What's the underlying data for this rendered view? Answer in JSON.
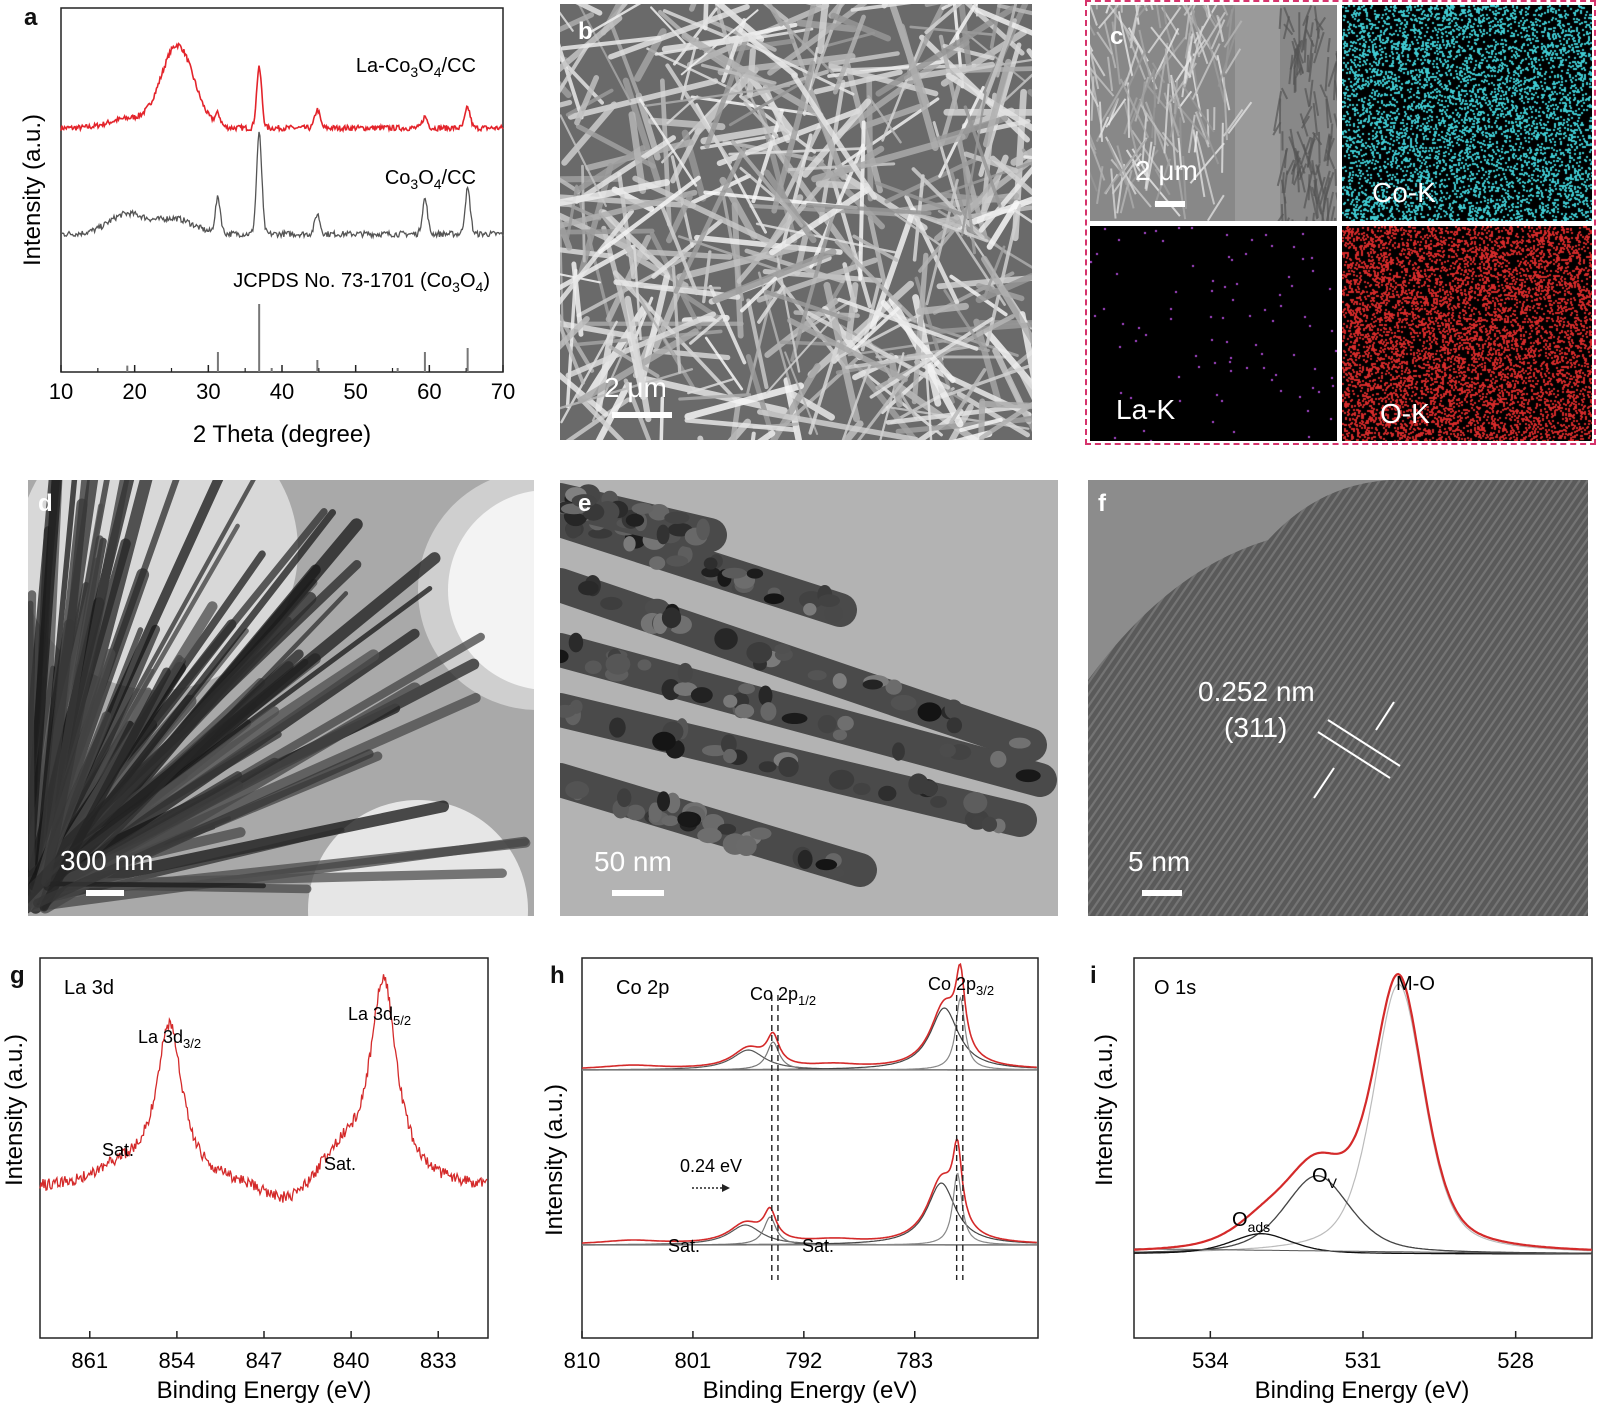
{
  "panels": {
    "a": {
      "letter": "a"
    },
    "b": {
      "letter": "b"
    },
    "c": {
      "letter": "c"
    },
    "d": {
      "letter": "d"
    },
    "e": {
      "letter": "e"
    },
    "f": {
      "letter": "f"
    },
    "g": {
      "letter": "g"
    },
    "h": {
      "letter": "h"
    },
    "i": {
      "letter": "i"
    }
  },
  "micrographs": {
    "b": {
      "scale": "2 μm"
    },
    "c": {
      "scale": "2 μm",
      "maps": [
        "Co-K",
        "La-K",
        "O-K"
      ],
      "colors": {
        "Co": "#3ec9d0",
        "La": "#b04bd8",
        "O": "#d42a2a"
      }
    },
    "d": {
      "scale": "300 nm"
    },
    "e": {
      "scale": "50 nm"
    },
    "f": {
      "scale": "5 nm",
      "spacing": "0.252 nm",
      "plane": "(311)"
    }
  },
  "chart_data": [
    {
      "panel": "a",
      "type": "line",
      "xlabel": "2 Theta (degree)",
      "ylabel": "Intensity (a.u.)",
      "xlim": [
        10,
        70
      ],
      "xticks": [
        "10",
        "20",
        "30",
        "40",
        "50",
        "60",
        "70"
      ],
      "series": [
        {
          "name": "La-Co3O4/CC",
          "label_main": "La-Co",
          "sub1": "3",
          "mid": "O",
          "sub2": "4",
          "suffix": "/CC",
          "color": "#e3242b",
          "peaks": [
            [
              19,
              0.1
            ],
            [
              25.8,
              0.9
            ],
            [
              31.3,
              0.12
            ],
            [
              36.9,
              0.65
            ],
            [
              44.8,
              0.2
            ],
            [
              59.4,
              0.12
            ],
            [
              65.2,
              0.22
            ]
          ]
        },
        {
          "name": "Co3O4/CC",
          "label_main": "Co",
          "sub1": "3",
          "mid": "O",
          "sub2": "4",
          "suffix": "/CC",
          "color": "#555555",
          "peaks": [
            [
              19,
              0.2
            ],
            [
              25.5,
              0.15
            ],
            [
              31.3,
              0.35
            ],
            [
              36.9,
              1.0
            ],
            [
              44.8,
              0.2
            ],
            [
              59.4,
              0.35
            ],
            [
              65.2,
              0.45
            ]
          ]
        }
      ],
      "reference": {
        "label_pre": "JCPDS No. 73-1701 (Co",
        "sub1": "3",
        "mid": "O",
        "sub2": "4",
        "post": ")",
        "lines": [
          [
            19,
            0.08
          ],
          [
            31.3,
            0.25
          ],
          [
            36.9,
            0.85
          ],
          [
            38.6,
            0.05
          ],
          [
            44.8,
            0.15
          ],
          [
            55.7,
            0.05
          ],
          [
            59.4,
            0.25
          ],
          [
            65.2,
            0.3
          ]
        ]
      }
    },
    {
      "panel": "g",
      "type": "line",
      "title": "La 3d",
      "xlabel": "Binding Energy (eV)",
      "ylabel": "Intensity (a.u.)",
      "xlim": [
        865,
        829
      ],
      "xticks": [
        "861",
        "854",
        "847",
        "840",
        "833"
      ],
      "annotations": [
        {
          "text": "La 3d",
          "sub": "3/2"
        },
        {
          "text": "La 3d",
          "sub": "5/2"
        },
        {
          "text": "Sat."
        },
        {
          "text": "Sat."
        }
      ],
      "color": "#d42a2a"
    },
    {
      "panel": "h",
      "type": "line",
      "title": "Co 2p",
      "xlabel": "Binding Energy (eV)",
      "ylabel": "Intensity (a.u.)",
      "xlim": [
        810,
        773
      ],
      "xticks": [
        "810",
        "801",
        "792",
        "783"
      ],
      "annotations": [
        {
          "text": "Co 2p",
          "sub": "1/2"
        },
        {
          "text": "Co 2p",
          "sub": "3/2"
        },
        {
          "text": "0.24 eV"
        },
        {
          "text": "Sat."
        },
        {
          "text": "Sat."
        }
      ],
      "color": "#d42a2a"
    },
    {
      "panel": "i",
      "type": "line",
      "title": "O 1s",
      "xlabel": "Binding Energy (eV)",
      "ylabel": "Intensity (a.u.)",
      "xlim": [
        535.5,
        526.5
      ],
      "xticks": [
        "534",
        "531",
        "528"
      ],
      "annotations": [
        {
          "text": "M-O"
        },
        {
          "text": "O",
          "sub": "V"
        },
        {
          "text": "O",
          "sub": "ads"
        }
      ],
      "color": "#d42a2a"
    }
  ]
}
